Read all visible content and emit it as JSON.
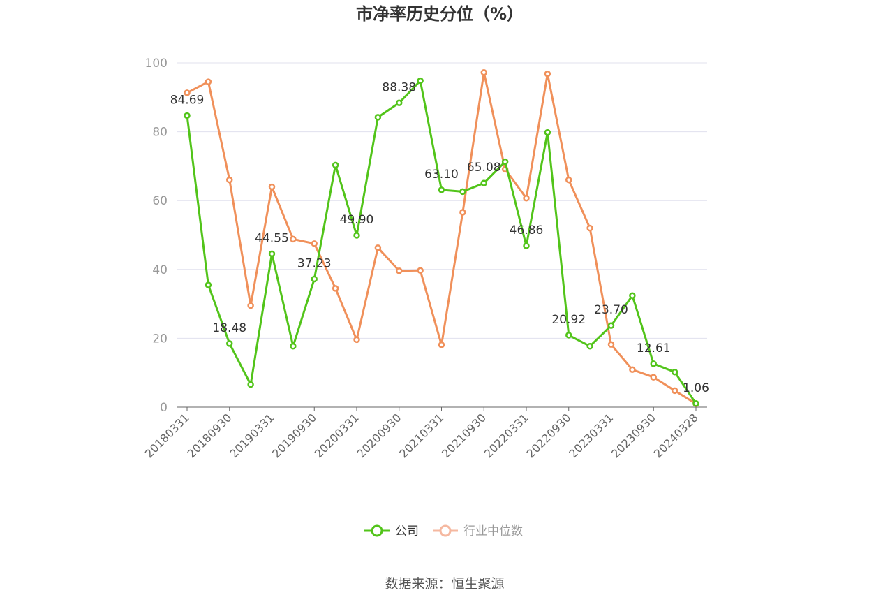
{
  "chart_data": {
    "type": "line",
    "title": "市净率历史分位（%）",
    "x": [
      "20180331",
      "20180630",
      "20180930",
      "20181231",
      "20190331",
      "20190630",
      "20190930",
      "20191231",
      "20200331",
      "20200630",
      "20200930",
      "20201231",
      "20210331",
      "20210630",
      "20210930",
      "20211231",
      "20220331",
      "20220630",
      "20220930",
      "20221231",
      "20230331",
      "20230630",
      "20230930",
      "20231231",
      "20240328"
    ],
    "xtick_labels": [
      "20180331",
      "20180930",
      "20190331",
      "20190930",
      "20200331",
      "20200930",
      "20210331",
      "20210930",
      "20220331",
      "20220930",
      "20230331",
      "20230930",
      "20240328"
    ],
    "ylim": [
      0,
      100
    ],
    "yticks": [
      0,
      20,
      40,
      60,
      80,
      100
    ],
    "grid": true,
    "legend_position": "bottom",
    "series": [
      {
        "name": "公司",
        "color": "#52c41a",
        "values": [
          84.69,
          35.5,
          18.48,
          6.6,
          44.55,
          17.7,
          37.23,
          70.3,
          49.9,
          84.2,
          88.38,
          94.8,
          63.1,
          62.6,
          65.08,
          71.3,
          46.86,
          79.8,
          20.92,
          17.7,
          23.7,
          32.4,
          12.61,
          10.2,
          1.06
        ],
        "labels": {
          "0": "84.69",
          "2": "18.48",
          "4": "44.55",
          "6": "37.23",
          "8": "49.90",
          "10": "88.38",
          "12": "63.10",
          "14": "65.08",
          "16": "46.86",
          "18": "20.92",
          "20": "23.70",
          "22": "12.61",
          "24": "1.06"
        }
      },
      {
        "name": "行业中位数",
        "color": "#f0905a",
        "values": [
          91.3,
          94.5,
          66.0,
          29.5,
          64.0,
          48.8,
          47.5,
          34.5,
          19.6,
          46.3,
          39.6,
          39.7,
          18.1,
          56.6,
          97.2,
          69.1,
          60.7,
          96.8,
          66.0,
          52.0,
          18.2,
          10.9,
          8.7,
          4.8,
          1.0
        ]
      }
    ]
  },
  "legend": {
    "items": [
      {
        "label": "公司",
        "color": "#52c41a"
      },
      {
        "label": "行业中位数",
        "color": "#f5b8a0"
      }
    ]
  },
  "source_text": "数据来源：恒生聚源"
}
